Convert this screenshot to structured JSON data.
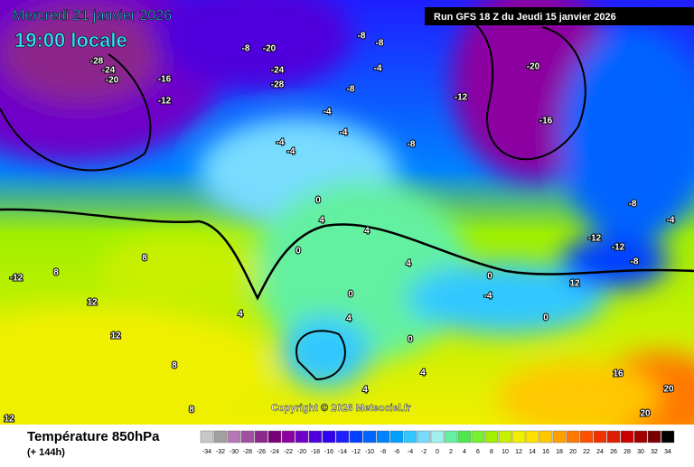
{
  "header": {
    "date": "Mercredi 21 janvier 2026",
    "time": "19:00 locale",
    "run": "Run GFS 18 Z du Jeudi 15 janvier 2026"
  },
  "copyright": "Copyright © 2026 Meteociel.fr",
  "footer": {
    "title": "Température 850hPa",
    "subtitle": "(+ 144h)"
  },
  "scale": {
    "ticks": [
      -34,
      -32,
      -30,
      -28,
      -26,
      -24,
      -22,
      -20,
      -18,
      -16,
      -14,
      -12,
      -10,
      -8,
      -6,
      -4,
      -2,
      0,
      2,
      4,
      6,
      8,
      10,
      12,
      14,
      16,
      18,
      20,
      22,
      24,
      26,
      28,
      30,
      32,
      34
    ],
    "colors": [
      "#c8c8c8",
      "#a0a0a0",
      "#b478b4",
      "#a050a0",
      "#8c288c",
      "#780078",
      "#8c00a0",
      "#6e00c8",
      "#5000dc",
      "#3000f0",
      "#1e1eff",
      "#0040ff",
      "#0064ff",
      "#0082ff",
      "#00a0ff",
      "#32c8ff",
      "#78dcff",
      "#a0f0f0",
      "#64f0a0",
      "#50e650",
      "#78f032",
      "#a0f000",
      "#c8f000",
      "#f0f000",
      "#ffe100",
      "#ffc800",
      "#ffa000",
      "#ff7800",
      "#ff5000",
      "#f03200",
      "#dc1e00",
      "#c80000",
      "#a00000",
      "#780000",
      "#000000"
    ]
  },
  "map_labels": [
    -28,
    -24,
    -20,
    -16,
    -12,
    -8,
    -20,
    -24,
    -28,
    -8,
    -8,
    -4,
    -8,
    -4,
    -4,
    -4,
    -4,
    -8,
    -12,
    -20,
    -16,
    -8,
    -4,
    -12,
    -12,
    -8,
    12,
    0,
    4,
    4,
    0,
    4,
    0,
    4,
    0,
    4,
    4,
    8,
    8,
    -12,
    12,
    12,
    8,
    4,
    16,
    20,
    20,
    8,
    12,
    0,
    -4,
    0
  ]
}
